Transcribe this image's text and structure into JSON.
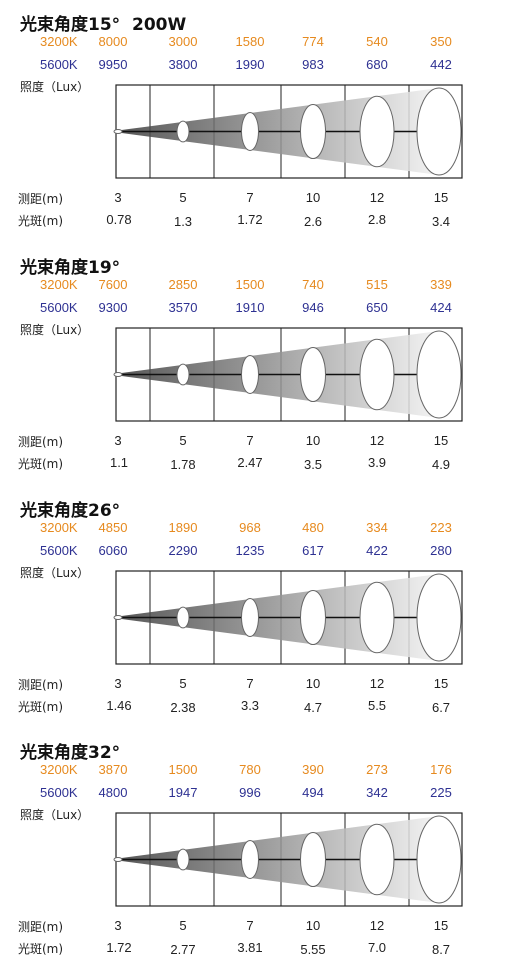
{
  "colors": {
    "warm": "#e68a1f",
    "cool": "#2e3192",
    "axis": "#222222"
  },
  "chart_data": [
    {
      "type": "table",
      "title": "光束角度15°  200W",
      "ylabel": "照度（Lux）",
      "xlabel": "测距(m)",
      "spot_label": "光斑(m)",
      "distances": [
        "3",
        "5",
        "7",
        "10",
        "12",
        "15"
      ],
      "series": [
        {
          "name": "3200K",
          "values": [
            "8000",
            "3000",
            "1580",
            "774",
            "540",
            "350"
          ]
        },
        {
          "name": "5600K",
          "values": [
            "9950",
            "3800",
            "1990",
            "983",
            "680",
            "442"
          ]
        }
      ],
      "spot": [
        "0.78",
        "1.3",
        "1.72",
        "2.6",
        "2.8",
        "3.4"
      ]
    },
    {
      "type": "table",
      "title": "光束角度19°",
      "ylabel": "照度（Lux）",
      "xlabel": "测距(m)",
      "spot_label": "光斑(m)",
      "distances": [
        "3",
        "5",
        "7",
        "10",
        "12",
        "15"
      ],
      "series": [
        {
          "name": "3200K",
          "values": [
            "7600",
            "2850",
            "1500",
            "740",
            "515",
            "339"
          ]
        },
        {
          "name": "5600K",
          "values": [
            "9300",
            "3570",
            "1910",
            "946",
            "650",
            "424"
          ]
        }
      ],
      "spot": [
        "1.1",
        "1.78",
        "2.47",
        "3.5",
        "3.9",
        "4.9"
      ]
    },
    {
      "type": "table",
      "title": "光束角度26°",
      "ylabel": "照度（Lux）",
      "xlabel": "测距(m)",
      "spot_label": "光斑(m)",
      "distances": [
        "3",
        "5",
        "7",
        "10",
        "12",
        "15"
      ],
      "series": [
        {
          "name": "3200K",
          "values": [
            "4850",
            "1890",
            "968",
            "480",
            "334",
            "223"
          ]
        },
        {
          "name": "5600K",
          "values": [
            "6060",
            "2290",
            "1235",
            "617",
            "422",
            "280"
          ]
        }
      ],
      "spot": [
        "1.46",
        "2.38",
        "3.3",
        "4.7",
        "5.5",
        "6.7"
      ]
    },
    {
      "type": "table",
      "title": "光束角度32°",
      "ylabel": "照度（Lux）",
      "xlabel": "测距(m)",
      "spot_label": "光斑(m)",
      "distances": [
        "3",
        "5",
        "7",
        "10",
        "12",
        "15"
      ],
      "series": [
        {
          "name": "3200K",
          "values": [
            "3870",
            "1500",
            "780",
            "390",
            "273",
            "176"
          ]
        },
        {
          "name": "5600K",
          "values": [
            "4800",
            "1947",
            "996",
            "494",
            "342",
            "225"
          ]
        }
      ],
      "spot": [
        "1.72",
        "2.77",
        "3.81",
        "5.55",
        "7.0",
        "8.7"
      ]
    }
  ]
}
